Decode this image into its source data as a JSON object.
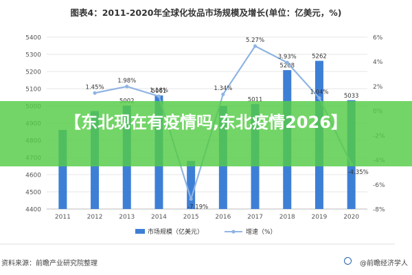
{
  "title": "图表4：2011-2020年全球化妆品市场规模及增长(单位：亿美元，%)",
  "banner": {
    "text": "【东北现在有疫情吗,东北疫情2026】"
  },
  "source": "资料来源：前瞻产业研究院整理",
  "brand": "@前瞻经济学人",
  "colors": {
    "bar": "#3e7fd6",
    "line": "#8fb4e3",
    "banner": "#54cc46"
  },
  "chart_data": {
    "type": "bar",
    "categories": [
      "2011",
      "2012",
      "2013",
      "2014",
      "2015",
      "2016",
      "2017",
      "2018",
      "2019",
      "2020"
    ],
    "series": [
      {
        "name": "市场规模（亿美元）",
        "type": "bar",
        "axis": "left",
        "values": [
          4860,
          4970,
          5002,
          5061,
          4680,
          5000,
          5011,
          5208,
          5262,
          5033
        ],
        "labels": [
          "",
          "",
          "5002",
          "5061",
          "",
          "",
          "5011",
          "5208",
          "5262",
          "5033"
        ]
      },
      {
        "name": "增速（%）",
        "type": "line",
        "axis": "right",
        "values": [
          null,
          1.45,
          1.98,
          1.18,
          -7.19,
          1.34,
          5.27,
          3.93,
          1.04,
          -4.35
        ],
        "labels": [
          "",
          "1.45%",
          "1.98%",
          "1.18%",
          "-7.19%",
          "1.34%",
          "5.27%",
          "3.93%",
          "1.04%",
          "-4.35%"
        ]
      }
    ],
    "y_left": {
      "ticks": [
        4400,
        4500,
        4600,
        4700,
        4800,
        4900,
        5000,
        5100,
        5200,
        5300,
        5400
      ],
      "ylim": [
        4400,
        5400
      ]
    },
    "y_right": {
      "ticks": [
        "-8%",
        "-6%",
        "-4%",
        "-2%",
        "0%",
        "2%",
        "4%",
        "6%"
      ],
      "ylim": [
        -8,
        6
      ]
    },
    "grid": true,
    "legend": "bottom-center"
  }
}
